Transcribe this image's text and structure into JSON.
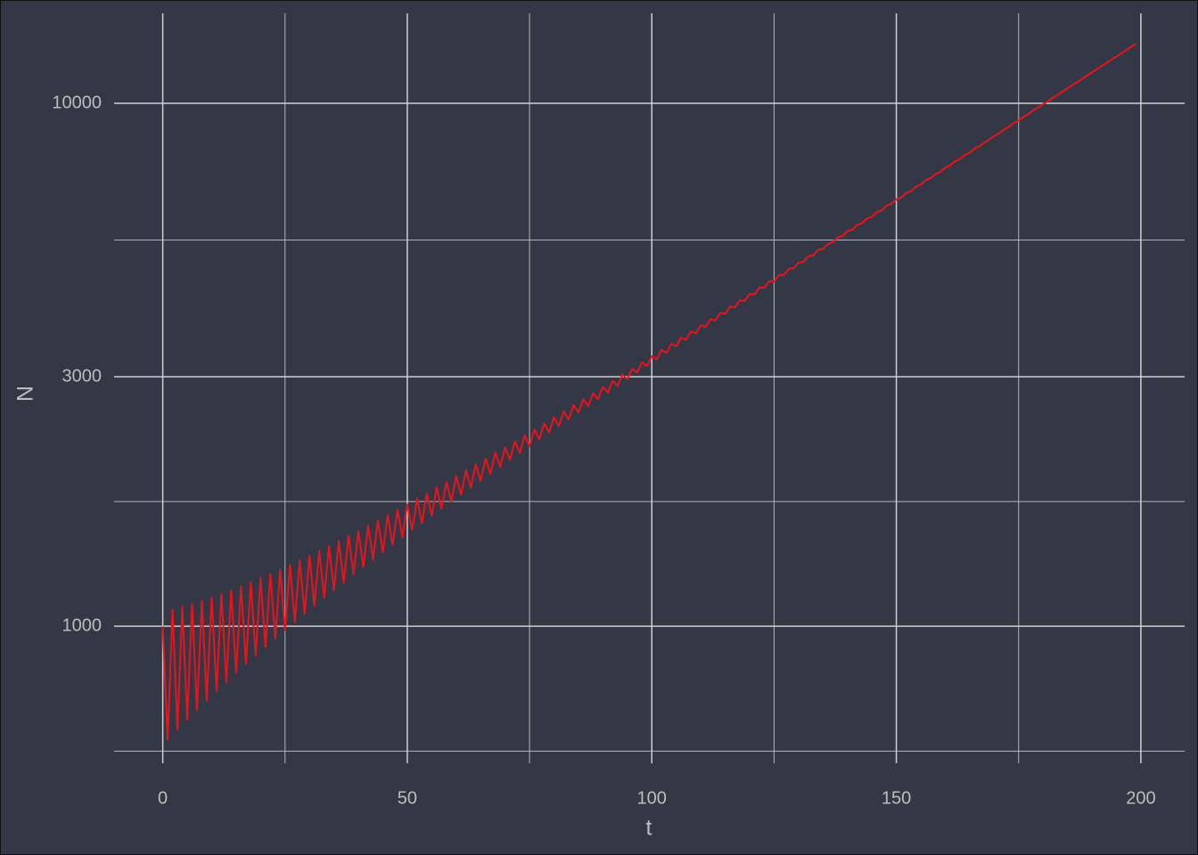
{
  "chart_data": {
    "type": "line",
    "xlabel": "t",
    "ylabel": "N",
    "log_y": true,
    "grid": true,
    "xlim": [
      -9.95,
      208.95
    ],
    "xticks": [
      0,
      50,
      100,
      150,
      200
    ],
    "xminor": [
      25,
      75,
      125,
      175
    ],
    "ylim": [
      547,
      14860
    ],
    "yticks": [
      1000,
      3000,
      10000
    ],
    "yminor": [
      577,
      1732,
      5477
    ],
    "x": [
      0,
      1,
      2,
      3,
      4,
      5,
      6,
      7,
      8,
      9,
      10,
      11,
      12,
      13,
      14,
      15,
      16,
      17,
      18,
      19,
      20,
      21,
      22,
      23,
      24,
      25,
      26,
      27,
      28,
      29,
      30,
      31,
      32,
      33,
      34,
      35,
      36,
      37,
      38,
      39,
      40,
      41,
      42,
      43,
      44,
      45,
      46,
      47,
      48,
      49,
      50,
      51,
      52,
      53,
      54,
      55,
      56,
      57,
      58,
      59,
      60,
      61,
      62,
      63,
      64,
      65,
      66,
      67,
      68,
      69,
      70,
      71,
      72,
      73,
      74,
      75,
      76,
      77,
      78,
      79,
      80,
      81,
      82,
      83,
      84,
      85,
      86,
      87,
      88,
      89,
      90,
      91,
      92,
      93,
      94,
      95,
      96,
      97,
      98,
      99,
      100,
      101,
      102,
      103,
      104,
      105,
      106,
      107,
      108,
      109,
      110,
      111,
      112,
      113,
      114,
      115,
      116,
      117,
      118,
      119,
      120,
      121,
      122,
      123,
      124,
      125,
      126,
      127,
      128,
      129,
      130,
      131,
      132,
      133,
      134,
      135,
      136,
      137,
      138,
      139,
      140,
      141,
      142,
      143,
      144,
      145,
      146,
      147,
      148,
      149,
      150,
      151,
      152,
      153,
      154,
      155,
      156,
      157,
      158,
      159,
      160,
      161,
      162,
      163,
      164,
      165,
      166,
      167,
      168,
      169,
      170,
      171,
      172,
      173,
      174,
      175,
      176,
      177,
      178,
      179,
      180,
      181,
      182,
      183,
      184,
      185,
      186,
      187,
      188,
      189,
      190,
      191,
      192,
      193,
      194,
      195,
      196,
      197,
      198,
      199
    ],
    "series": [
      {
        "color": "#e8141c",
        "values": [
          1000,
          607,
          1077,
          634,
          1090,
          663,
          1103,
          691,
          1119,
          721,
          1135,
          752,
          1153,
          782,
          1171,
          814,
          1192,
          847,
          1213,
          879,
          1236,
          913,
          1259,
          947,
          1283,
          983,
          1309,
          1018,
          1336,
          1057,
          1365,
          1094,
          1393,
          1134,
          1424,
          1173,
          1455,
          1212,
          1489,
          1256,
          1520,
          1298,
          1556,
          1340,
          1593,
          1385,
          1631,
          1431,
          1671,
          1479,
          1710,
          1527,
          1755,
          1574,
          1796,
          1626,
          1843,
          1678,
          1887,
          1731,
          1937,
          1785,
          1987,
          1840,
          2040,
          1898,
          2092,
          1956,
          2148,
          2017,
          2199,
          2080,
          2258,
          2144,
          2318,
          2209,
          2379,
          2277,
          2443,
          2347,
          2509,
          2415,
          2576,
          2486,
          2647,
          2562,
          2716,
          2638,
          2791,
          2719,
          2868,
          2799,
          2947,
          2881,
          3029,
          2967,
          3112,
          3054,
          3197,
          3144,
          3283,
          3237,
          3376,
          3333,
          3468,
          3431,
          3563,
          3529,
          3661,
          3633,
          3765,
          3740,
          3868,
          3846,
          3974,
          3959,
          4088,
          4072,
          4200,
          4192,
          4319,
          4312,
          4442,
          4436,
          4568,
          4562,
          4696,
          4694,
          4825,
          4834,
          4962,
          4972,
          5101,
          5115,
          5243,
          5264,
          5387,
          5420,
          5541,
          5575,
          5698,
          5732,
          5860,
          5897,
          6021,
          6067,
          6194,
          6243,
          6370,
          6422,
          6551,
          6603,
          6737,
          6792,
          6925,
          6993,
          7120,
          7192,
          7321,
          7398,
          7531,
          7607,
          7745,
          7824,
          7967,
          8047,
          8193,
          8276,
          8420,
          8521,
          8659,
          8764,
          8906,
          9014,
          9160,
          9271,
          9420,
          9537,
          9688,
          9810,
          9960,
          10090,
          10244,
          10378,
          10535,
          10675,
          10834,
          10980,
          11142,
          11294,
          11459,
          11614,
          11786,
          11946,
          12121,
          12288,
          12466,
          12638,
          12821,
          12999
        ]
      }
    ]
  }
}
